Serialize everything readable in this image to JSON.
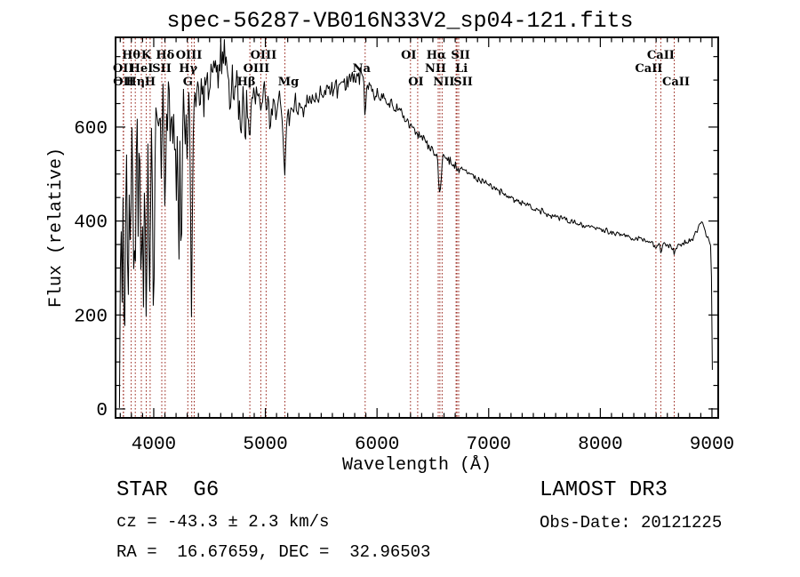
{
  "title": "spec-56287-VB016N33V2_sp04-121.fits",
  "annotations": {
    "class_label": "STAR  G6",
    "survey_label": "LAMOST DR3",
    "cz_label": "cz = -43.3 ± 2.3 km/s",
    "obs_date_label": "Obs-Date: 20121225",
    "radec_label": "RA =  16.67659, DEC =  32.96503"
  },
  "chart_data": {
    "type": "line",
    "title": "spec-56287-VB016N33V2_sp04-121.fits",
    "xlabel": "Wavelength (Å)",
    "ylabel": "Flux (relative)",
    "xlim": [
      3658,
      9056
    ],
    "ylim": [
      -19,
      791
    ],
    "x_ticks": [
      4000,
      5000,
      6000,
      7000,
      8000,
      9000
    ],
    "x_minor_step": 100,
    "y_ticks": [
      0,
      200,
      400,
      600
    ],
    "y_minor_step": 50,
    "grid": false,
    "background": "#ffffff",
    "curve_color": "#000000",
    "marker_line_color": "#9b2a20",
    "spectral_lines": [
      {
        "label": "OII",
        "wavelength": 3727,
        "row": 2,
        "dx": 0
      },
      {
        "label": "OII",
        "wavelength": 3730,
        "row": 3,
        "dx": 0
      },
      {
        "label": "Hθ",
        "wavelength": 3798,
        "row": 1,
        "dx": 0
      },
      {
        "label": "Hη",
        "wavelength": 3835,
        "row": 3,
        "dx": 0
      },
      {
        "label": "HeI",
        "wavelength": 3889,
        "row": 2,
        "dx": 0
      },
      {
        "label": "K",
        "wavelength": 3933,
        "row": 1,
        "dx": 0
      },
      {
        "label": "H",
        "wavelength": 3968,
        "row": 3,
        "dx": 0
      },
      {
        "label": "SII",
        "wavelength": 4072,
        "row": 2,
        "dx": 0
      },
      {
        "label": "Hδ",
        "wavelength": 4102,
        "row": 1,
        "dx": 0
      },
      {
        "label": "G",
        "wavelength": 4305,
        "row": 3,
        "dx": 0
      },
      {
        "label": "Hγ",
        "wavelength": 4340,
        "row": 2,
        "dx": -4
      },
      {
        "label": "OIII",
        "wavelength": 4363,
        "row": 1,
        "dx": -6
      },
      {
        "label": "Hβ",
        "wavelength": 4861,
        "row": 3,
        "dx": -4
      },
      {
        "label": "OIII",
        "wavelength": 4959,
        "row": 2,
        "dx": -5
      },
      {
        "label": "OIII",
        "wavelength": 5007,
        "row": 1,
        "dx": -3
      },
      {
        "label": "Mg",
        "wavelength": 5175,
        "row": 3,
        "dx": 4
      },
      {
        "label": "Na",
        "wavelength": 5894,
        "row": 2,
        "dx": -4
      },
      {
        "label": "OI",
        "wavelength": 6300,
        "row": 1,
        "dx": -2
      },
      {
        "label": "NII",
        "wavelength": 6548,
        "row": 2,
        "dx": -3
      },
      {
        "label": "Hα",
        "wavelength": 6563,
        "row": 1,
        "dx": -4
      },
      {
        "label": "NII",
        "wavelength": 6583,
        "row": 3,
        "dx": 2
      },
      {
        "label": "OI",
        "wavelength": 6364,
        "row": 3,
        "dx": -2
      },
      {
        "label": "Li",
        "wavelength": 6708,
        "row": 2,
        "dx": 6
      },
      {
        "label": "SII",
        "wavelength": 6716,
        "row": 1,
        "dx": 4
      },
      {
        "label": "SII",
        "wavelength": 6731,
        "row": 3,
        "dx": 5
      },
      {
        "label": "CaII",
        "wavelength": 8498,
        "row": 2,
        "dx": -8
      },
      {
        "label": "CaII",
        "wavelength": 8542,
        "row": 1,
        "dx": 0
      },
      {
        "label": "CaII",
        "wavelength": 8662,
        "row": 3,
        "dx": 2
      }
    ],
    "noise_seed": 1234,
    "noise_segments": [
      {
        "from": 3690,
        "to": 4050,
        "amp": 42
      },
      {
        "from": 4050,
        "to": 4420,
        "amp": 38
      },
      {
        "from": 4420,
        "to": 4900,
        "amp": 30
      },
      {
        "from": 4900,
        "to": 5900,
        "amp": 16
      },
      {
        "from": 5900,
        "to": 6740,
        "amp": 8
      },
      {
        "from": 6740,
        "to": 8990,
        "amp": 5
      },
      {
        "from": 8990,
        "to": 9010,
        "amp": 3
      }
    ],
    "spectrum_points": [
      [
        3693,
        10
      ],
      [
        3697,
        110
      ],
      [
        3701,
        300
      ],
      [
        3705,
        150
      ],
      [
        3710,
        430
      ],
      [
        3715,
        250
      ],
      [
        3720,
        160
      ],
      [
        3727,
        540
      ],
      [
        3733,
        200
      ],
      [
        3739,
        140
      ],
      [
        3745,
        330
      ],
      [
        3752,
        500
      ],
      [
        3758,
        630
      ],
      [
        3764,
        350
      ],
      [
        3770,
        200
      ],
      [
        3776,
        320
      ],
      [
        3782,
        520
      ],
      [
        3788,
        420
      ],
      [
        3794,
        350
      ],
      [
        3800,
        480
      ],
      [
        3806,
        630
      ],
      [
        3812,
        420
      ],
      [
        3818,
        280
      ],
      [
        3824,
        230
      ],
      [
        3830,
        330
      ],
      [
        3835,
        210
      ],
      [
        3841,
        450
      ],
      [
        3848,
        600
      ],
      [
        3854,
        640
      ],
      [
        3860,
        380
      ],
      [
        3866,
        560
      ],
      [
        3872,
        630
      ],
      [
        3878,
        500
      ],
      [
        3884,
        350
      ],
      [
        3889,
        255
      ],
      [
        3895,
        450
      ],
      [
        3901,
        340
      ],
      [
        3907,
        175
      ],
      [
        3913,
        380
      ],
      [
        3919,
        470
      ],
      [
        3926,
        300
      ],
      [
        3933,
        125
      ],
      [
        3940,
        350
      ],
      [
        3947,
        530
      ],
      [
        3953,
        420
      ],
      [
        3959,
        260
      ],
      [
        3965,
        235
      ],
      [
        3971,
        400
      ],
      [
        3977,
        560
      ],
      [
        3983,
        620
      ],
      [
        3989,
        420
      ],
      [
        3995,
        250
      ],
      [
        4000,
        165
      ],
      [
        4006,
        420
      ],
      [
        4012,
        560
      ],
      [
        4018,
        630
      ],
      [
        4025,
        570
      ],
      [
        4032,
        640
      ],
      [
        4039,
        590
      ],
      [
        4046,
        550
      ],
      [
        4053,
        610
      ],
      [
        4060,
        645
      ],
      [
        4068,
        530
      ],
      [
        4075,
        590
      ],
      [
        4082,
        650
      ],
      [
        4090,
        545
      ],
      [
        4097,
        450
      ],
      [
        4102,
        380
      ],
      [
        4108,
        540
      ],
      [
        4115,
        640
      ],
      [
        4122,
        615
      ],
      [
        4130,
        655
      ],
      [
        4138,
        660
      ],
      [
        4146,
        590
      ],
      [
        4154,
        640
      ],
      [
        4162,
        655
      ],
      [
        4170,
        575
      ],
      [
        4178,
        625
      ],
      [
        4186,
        545
      ],
      [
        4194,
        565
      ],
      [
        4200,
        390
      ],
      [
        4207,
        560
      ],
      [
        4213,
        600
      ],
      [
        4220,
        420
      ],
      [
        4227,
        305
      ],
      [
        4234,
        540
      ],
      [
        4240,
        430
      ],
      [
        4247,
        310
      ],
      [
        4254,
        430
      ],
      [
        4261,
        615
      ],
      [
        4268,
        650
      ],
      [
        4276,
        610
      ],
      [
        4284,
        585
      ],
      [
        4292,
        605
      ],
      [
        4300,
        500
      ],
      [
        4308,
        565
      ],
      [
        4315,
        635
      ],
      [
        4322,
        560
      ],
      [
        4329,
        430
      ],
      [
        4335,
        250
      ],
      [
        4340,
        185
      ],
      [
        4346,
        420
      ],
      [
        4353,
        580
      ],
      [
        4360,
        640
      ],
      [
        4368,
        670
      ],
      [
        4376,
        645
      ],
      [
        4384,
        700
      ],
      [
        4392,
        665
      ],
      [
        4400,
        685
      ],
      [
        4410,
        700
      ],
      [
        4420,
        660
      ],
      [
        4430,
        710
      ],
      [
        4440,
        650
      ],
      [
        4450,
        580
      ],
      [
        4460,
        690
      ],
      [
        4470,
        740
      ],
      [
        4480,
        700
      ],
      [
        4490,
        650
      ],
      [
        4500,
        700
      ],
      [
        4510,
        730
      ],
      [
        4520,
        690
      ],
      [
        4530,
        740
      ],
      [
        4540,
        700
      ],
      [
        4550,
        760
      ],
      [
        4560,
        700
      ],
      [
        4570,
        730
      ],
      [
        4580,
        680
      ],
      [
        4590,
        720
      ],
      [
        4600,
        750
      ],
      [
        4610,
        700
      ],
      [
        4620,
        730
      ],
      [
        4630,
        760
      ],
      [
        4640,
        720
      ],
      [
        4650,
        700
      ],
      [
        4660,
        740
      ],
      [
        4670,
        680
      ],
      [
        4680,
        640
      ],
      [
        4690,
        700
      ],
      [
        4700,
        730
      ],
      [
        4710,
        690
      ],
      [
        4720,
        650
      ],
      [
        4730,
        700
      ],
      [
        4740,
        720
      ],
      [
        4750,
        680
      ],
      [
        4760,
        620
      ],
      [
        4770,
        680
      ],
      [
        4780,
        560
      ],
      [
        4790,
        640
      ],
      [
        4800,
        680
      ],
      [
        4810,
        640
      ],
      [
        4820,
        600
      ],
      [
        4830,
        660
      ],
      [
        4840,
        620
      ],
      [
        4850,
        600
      ],
      [
        4861,
        565
      ],
      [
        4872,
        640
      ],
      [
        4880,
        680
      ],
      [
        4890,
        660
      ],
      [
        4900,
        640
      ],
      [
        4915,
        665
      ],
      [
        4930,
        690
      ],
      [
        4945,
        660
      ],
      [
        4960,
        640
      ],
      [
        4975,
        665
      ],
      [
        4990,
        690
      ],
      [
        5007,
        640
      ],
      [
        5025,
        660
      ],
      [
        5040,
        600
      ],
      [
        5055,
        630
      ],
      [
        5070,
        665
      ],
      [
        5085,
        640
      ],
      [
        5100,
        615
      ],
      [
        5115,
        650
      ],
      [
        5130,
        665
      ],
      [
        5145,
        640
      ],
      [
        5160,
        580
      ],
      [
        5175,
        492
      ],
      [
        5190,
        600
      ],
      [
        5205,
        640
      ],
      [
        5220,
        615
      ],
      [
        5235,
        650
      ],
      [
        5250,
        640
      ],
      [
        5265,
        660
      ],
      [
        5280,
        640
      ],
      [
        5295,
        620
      ],
      [
        5310,
        650
      ],
      [
        5325,
        665
      ],
      [
        5340,
        640
      ],
      [
        5355,
        660
      ],
      [
        5370,
        645
      ],
      [
        5385,
        665
      ],
      [
        5400,
        650
      ],
      [
        5420,
        670
      ],
      [
        5440,
        655
      ],
      [
        5460,
        675
      ],
      [
        5480,
        660
      ],
      [
        5500,
        680
      ],
      [
        5520,
        665
      ],
      [
        5540,
        685
      ],
      [
        5560,
        670
      ],
      [
        5580,
        690
      ],
      [
        5600,
        675
      ],
      [
        5620,
        695
      ],
      [
        5640,
        680
      ],
      [
        5660,
        700
      ],
      [
        5680,
        685
      ],
      [
        5700,
        700
      ],
      [
        5720,
        690
      ],
      [
        5740,
        705
      ],
      [
        5760,
        695
      ],
      [
        5780,
        710
      ],
      [
        5800,
        700
      ],
      [
        5820,
        715
      ],
      [
        5840,
        705
      ],
      [
        5860,
        718
      ],
      [
        5880,
        700
      ],
      [
        5894,
        600
      ],
      [
        5908,
        690
      ],
      [
        5920,
        680
      ],
      [
        5940,
        690
      ],
      [
        5960,
        675
      ],
      [
        5980,
        665
      ],
      [
        6000,
        672
      ],
      [
        6030,
        660
      ],
      [
        6060,
        665
      ],
      [
        6090,
        650
      ],
      [
        6120,
        655
      ],
      [
        6150,
        640
      ],
      [
        6180,
        645
      ],
      [
        6210,
        630
      ],
      [
        6240,
        625
      ],
      [
        6270,
        615
      ],
      [
        6300,
        600
      ],
      [
        6330,
        600
      ],
      [
        6364,
        585
      ],
      [
        6390,
        580
      ],
      [
        6420,
        572
      ],
      [
        6450,
        562
      ],
      [
        6480,
        556
      ],
      [
        6510,
        548
      ],
      [
        6540,
        542
      ],
      [
        6563,
        445
      ],
      [
        6586,
        535
      ],
      [
        6610,
        540
      ],
      [
        6640,
        532
      ],
      [
        6670,
        525
      ],
      [
        6700,
        518
      ],
      [
        6716,
        510
      ],
      [
        6731,
        512
      ],
      [
        6760,
        512
      ],
      [
        6800,
        505
      ],
      [
        6850,
        498
      ],
      [
        6900,
        490
      ],
      [
        6950,
        485
      ],
      [
        7000,
        478
      ],
      [
        7060,
        468
      ],
      [
        7120,
        460
      ],
      [
        7180,
        452
      ],
      [
        7240,
        445
      ],
      [
        7300,
        438
      ],
      [
        7360,
        430
      ],
      [
        7420,
        425
      ],
      [
        7480,
        420
      ],
      [
        7540,
        415
      ],
      [
        7600,
        410
      ],
      [
        7660,
        405
      ],
      [
        7720,
        400
      ],
      [
        7780,
        396
      ],
      [
        7840,
        392
      ],
      [
        7900,
        388
      ],
      [
        7960,
        385
      ],
      [
        8020,
        382
      ],
      [
        8080,
        378
      ],
      [
        8140,
        374
      ],
      [
        8200,
        370
      ],
      [
        8260,
        366
      ],
      [
        8320,
        362
      ],
      [
        8380,
        360
      ],
      [
        8440,
        358
      ],
      [
        8498,
        345
      ],
      [
        8520,
        355
      ],
      [
        8542,
        332
      ],
      [
        8564,
        352
      ],
      [
        8600,
        350
      ],
      [
        8630,
        345
      ],
      [
        8662,
        333
      ],
      [
        8694,
        350
      ],
      [
        8730,
        352
      ],
      [
        8770,
        356
      ],
      [
        8810,
        360
      ],
      [
        8850,
        370
      ],
      [
        8890,
        392
      ],
      [
        8910,
        396
      ],
      [
        8930,
        385
      ],
      [
        8950,
        372
      ],
      [
        8970,
        362
      ],
      [
        8985,
        352
      ],
      [
        8993,
        340
      ],
      [
        8998,
        220
      ],
      [
        9003,
        90
      ],
      [
        9008,
        12
      ]
    ]
  }
}
